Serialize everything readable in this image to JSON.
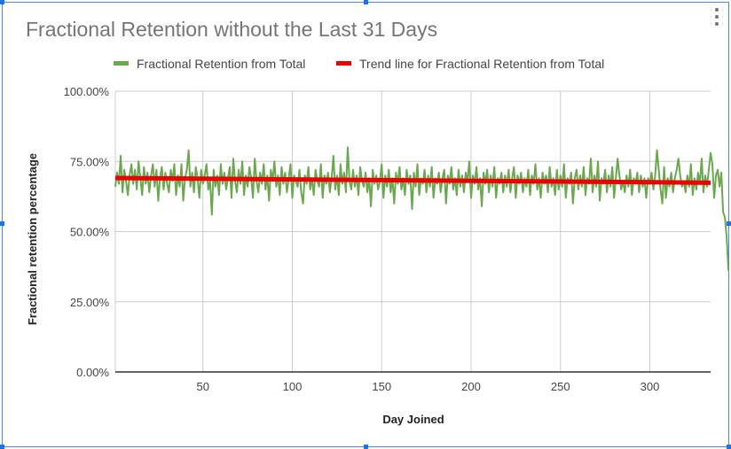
{
  "chart_data": {
    "type": "line",
    "title": "Fractional Retention without the Last 31 Days",
    "xlabel": "Day Joined",
    "ylabel": "Fractional retention percentage",
    "xlim": [
      1,
      334
    ],
    "ylim": [
      0,
      1
    ],
    "x_ticks": [
      50,
      100,
      150,
      200,
      250,
      300
    ],
    "x_tick_labels": [
      "50",
      "100",
      "150",
      "200",
      "250",
      "300"
    ],
    "y_ticks": [
      0,
      0.25,
      0.5,
      0.75,
      1
    ],
    "y_tick_labels": [
      "0.00%",
      "25.00%",
      "50.00%",
      "75.00%",
      "100.00%"
    ],
    "grid": true,
    "legend_position": "top",
    "series": [
      {
        "name": "Fractional Retention from Total",
        "color": "#6aa84f",
        "x_start": 1,
        "x_step": 1,
        "values": [
          0.66,
          0.71,
          0.67,
          0.77,
          0.64,
          0.72,
          0.68,
          0.63,
          0.7,
          0.74,
          0.67,
          0.72,
          0.65,
          0.75,
          0.69,
          0.63,
          0.73,
          0.67,
          0.71,
          0.64,
          0.7,
          0.74,
          0.66,
          0.72,
          0.61,
          0.69,
          0.73,
          0.65,
          0.71,
          0.67,
          0.64,
          0.72,
          0.68,
          0.74,
          0.63,
          0.7,
          0.66,
          0.74,
          0.61,
          0.69,
          0.72,
          0.79,
          0.66,
          0.71,
          0.64,
          0.73,
          0.69,
          0.62,
          0.72,
          0.67,
          0.7,
          0.74,
          0.65,
          0.68,
          0.56,
          0.72,
          0.66,
          0.7,
          0.63,
          0.74,
          0.67,
          0.71,
          0.65,
          0.69,
          0.73,
          0.62,
          0.76,
          0.68,
          0.64,
          0.72,
          0.67,
          0.75,
          0.63,
          0.7,
          0.66,
          0.73,
          0.69,
          0.62,
          0.76,
          0.68,
          0.64,
          0.71,
          0.67,
          0.74,
          0.65,
          0.7,
          0.61,
          0.72,
          0.68,
          0.75,
          0.66,
          0.7,
          0.63,
          0.73,
          0.67,
          0.71,
          0.64,
          0.69,
          0.74,
          0.62,
          0.7,
          0.68,
          0.66,
          0.72,
          0.64,
          0.6,
          0.7,
          0.67,
          0.73,
          0.65,
          0.69,
          0.63,
          0.72,
          0.68,
          0.66,
          0.74,
          0.62,
          0.7,
          0.67,
          0.71,
          0.64,
          0.69,
          0.77,
          0.65,
          0.7,
          0.63,
          0.74,
          0.67,
          0.71,
          0.64,
          0.8,
          0.68,
          0.65,
          0.72,
          0.66,
          0.7,
          0.63,
          0.73,
          0.68,
          0.66,
          0.71,
          0.64,
          0.69,
          0.59,
          0.72,
          0.67,
          0.7,
          0.65,
          0.68,
          0.74,
          0.62,
          0.7,
          0.66,
          0.72,
          0.64,
          0.69,
          0.6,
          0.71,
          0.67,
          0.73,
          0.65,
          0.69,
          0.63,
          0.72,
          0.67,
          0.7,
          0.58,
          0.71,
          0.66,
          0.74,
          0.63,
          0.69,
          0.67,
          0.72,
          0.64,
          0.7,
          0.66,
          0.73,
          0.62,
          0.69,
          0.67,
          0.71,
          0.64,
          0.69,
          0.72,
          0.6,
          0.7,
          0.67,
          0.73,
          0.65,
          0.69,
          0.63,
          0.72,
          0.66,
          0.7,
          0.64,
          0.71,
          0.68,
          0.75,
          0.62,
          0.7,
          0.67,
          0.73,
          0.65,
          0.69,
          0.59,
          0.71,
          0.67,
          0.72,
          0.64,
          0.7,
          0.66,
          0.73,
          0.62,
          0.69,
          0.67,
          0.71,
          0.64,
          0.7,
          0.66,
          0.72,
          0.64,
          0.69,
          0.73,
          0.62,
          0.7,
          0.67,
          0.71,
          0.64,
          0.69,
          0.66,
          0.72,
          0.63,
          0.7,
          0.67,
          0.74,
          0.65,
          0.69,
          0.62,
          0.71,
          0.67,
          0.7,
          0.64,
          0.73,
          0.66,
          0.69,
          0.63,
          0.72,
          0.65,
          0.7,
          0.66,
          0.74,
          0.62,
          0.69,
          0.67,
          0.71,
          0.6,
          0.69,
          0.72,
          0.65,
          0.7,
          0.66,
          0.73,
          0.63,
          0.69,
          0.67,
          0.76,
          0.64,
          0.7,
          0.66,
          0.75,
          0.61,
          0.69,
          0.67,
          0.72,
          0.64,
          0.7,
          0.66,
          0.73,
          0.62,
          0.69,
          0.76,
          0.7,
          0.65,
          0.68,
          0.64,
          0.7,
          0.66,
          0.72,
          0.63,
          0.69,
          0.67,
          0.71,
          0.64,
          0.7,
          0.66,
          0.69,
          0.62,
          0.69,
          0.67,
          0.71,
          0.65,
          0.7,
          0.79,
          0.72,
          0.65,
          0.6,
          0.73,
          0.62,
          0.69,
          0.66,
          0.71,
          0.64,
          0.69,
          0.72,
          0.76,
          0.7,
          0.66,
          0.68,
          0.64,
          0.7,
          0.66,
          0.74,
          0.63,
          0.69,
          0.65,
          0.71,
          0.67,
          0.76,
          0.64,
          0.7,
          0.66,
          0.72,
          0.78,
          0.74,
          0.62,
          0.7,
          0.72,
          0.66,
          0.71,
          0.57,
          0.55,
          0.48,
          0.36
        ]
      },
      {
        "name": "Trend line for Fractional Retention from Total",
        "color": "#ee0000",
        "x": [
          1,
          334
        ],
        "values": [
          0.691,
          0.674
        ]
      }
    ]
  }
}
